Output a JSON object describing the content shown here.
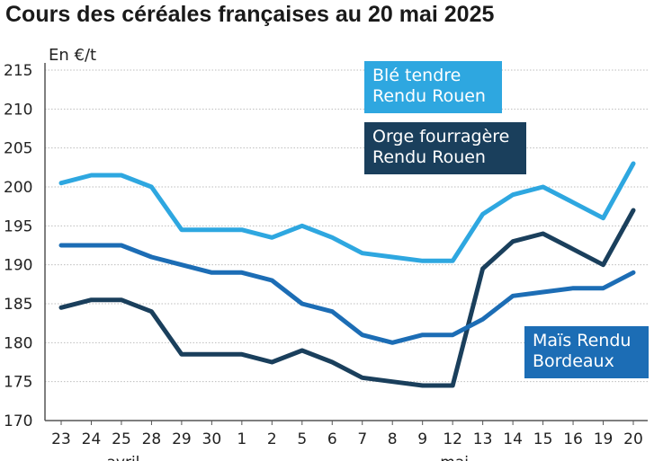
{
  "chart_data": {
    "type": "line",
    "title": "Cours des céréales françaises au 20 mai 2025",
    "ylabel": "En €/t",
    "ylim": [
      170,
      215
    ],
    "yticks": [
      170,
      175,
      180,
      185,
      190,
      195,
      200,
      205,
      210,
      215
    ],
    "categories": [
      "23",
      "24",
      "25",
      "28",
      "29",
      "30",
      "1",
      "2",
      "5",
      "6",
      "7",
      "8",
      "9",
      "12",
      "13",
      "14",
      "15",
      "16",
      "19",
      "20"
    ],
    "month_labels": [
      {
        "label": "avril",
        "index": 2
      },
      {
        "label": "mai",
        "index": 13
      }
    ],
    "grid": true,
    "legend_placement": "inline",
    "series": [
      {
        "name": "Blé tendre Rendu Rouen",
        "legend_lines": [
          "Blé tendre",
          "Rendu Rouen"
        ],
        "color": "#2ea7e0",
        "values": [
          200.5,
          201.5,
          201.5,
          200,
          194.5,
          194.5,
          194.5,
          193.5,
          195,
          193.5,
          191.5,
          191,
          190.5,
          190.5,
          196.5,
          199,
          200,
          198,
          196,
          203
        ]
      },
      {
        "name": "Orge fourragère Rendu Rouen",
        "legend_lines": [
          "Orge fourragère",
          "Rendu Rouen"
        ],
        "color": "#1a3f5c",
        "values": [
          184.5,
          185.5,
          185.5,
          184,
          178.5,
          178.5,
          178.5,
          177.5,
          179,
          177.5,
          175.5,
          175,
          174.5,
          174.5,
          189.5,
          193,
          194,
          192,
          190,
          197
        ]
      },
      {
        "name": "Maïs Rendu Bordeaux",
        "legend_lines": [
          "Maïs Rendu",
          "Bordeaux"
        ],
        "color": "#1c6db5",
        "values": [
          192.5,
          192.5,
          192.5,
          191,
          190,
          189,
          189,
          188,
          185,
          184,
          181,
          180,
          181,
          181,
          183,
          186,
          186.5,
          187,
          187,
          189
        ]
      }
    ]
  }
}
